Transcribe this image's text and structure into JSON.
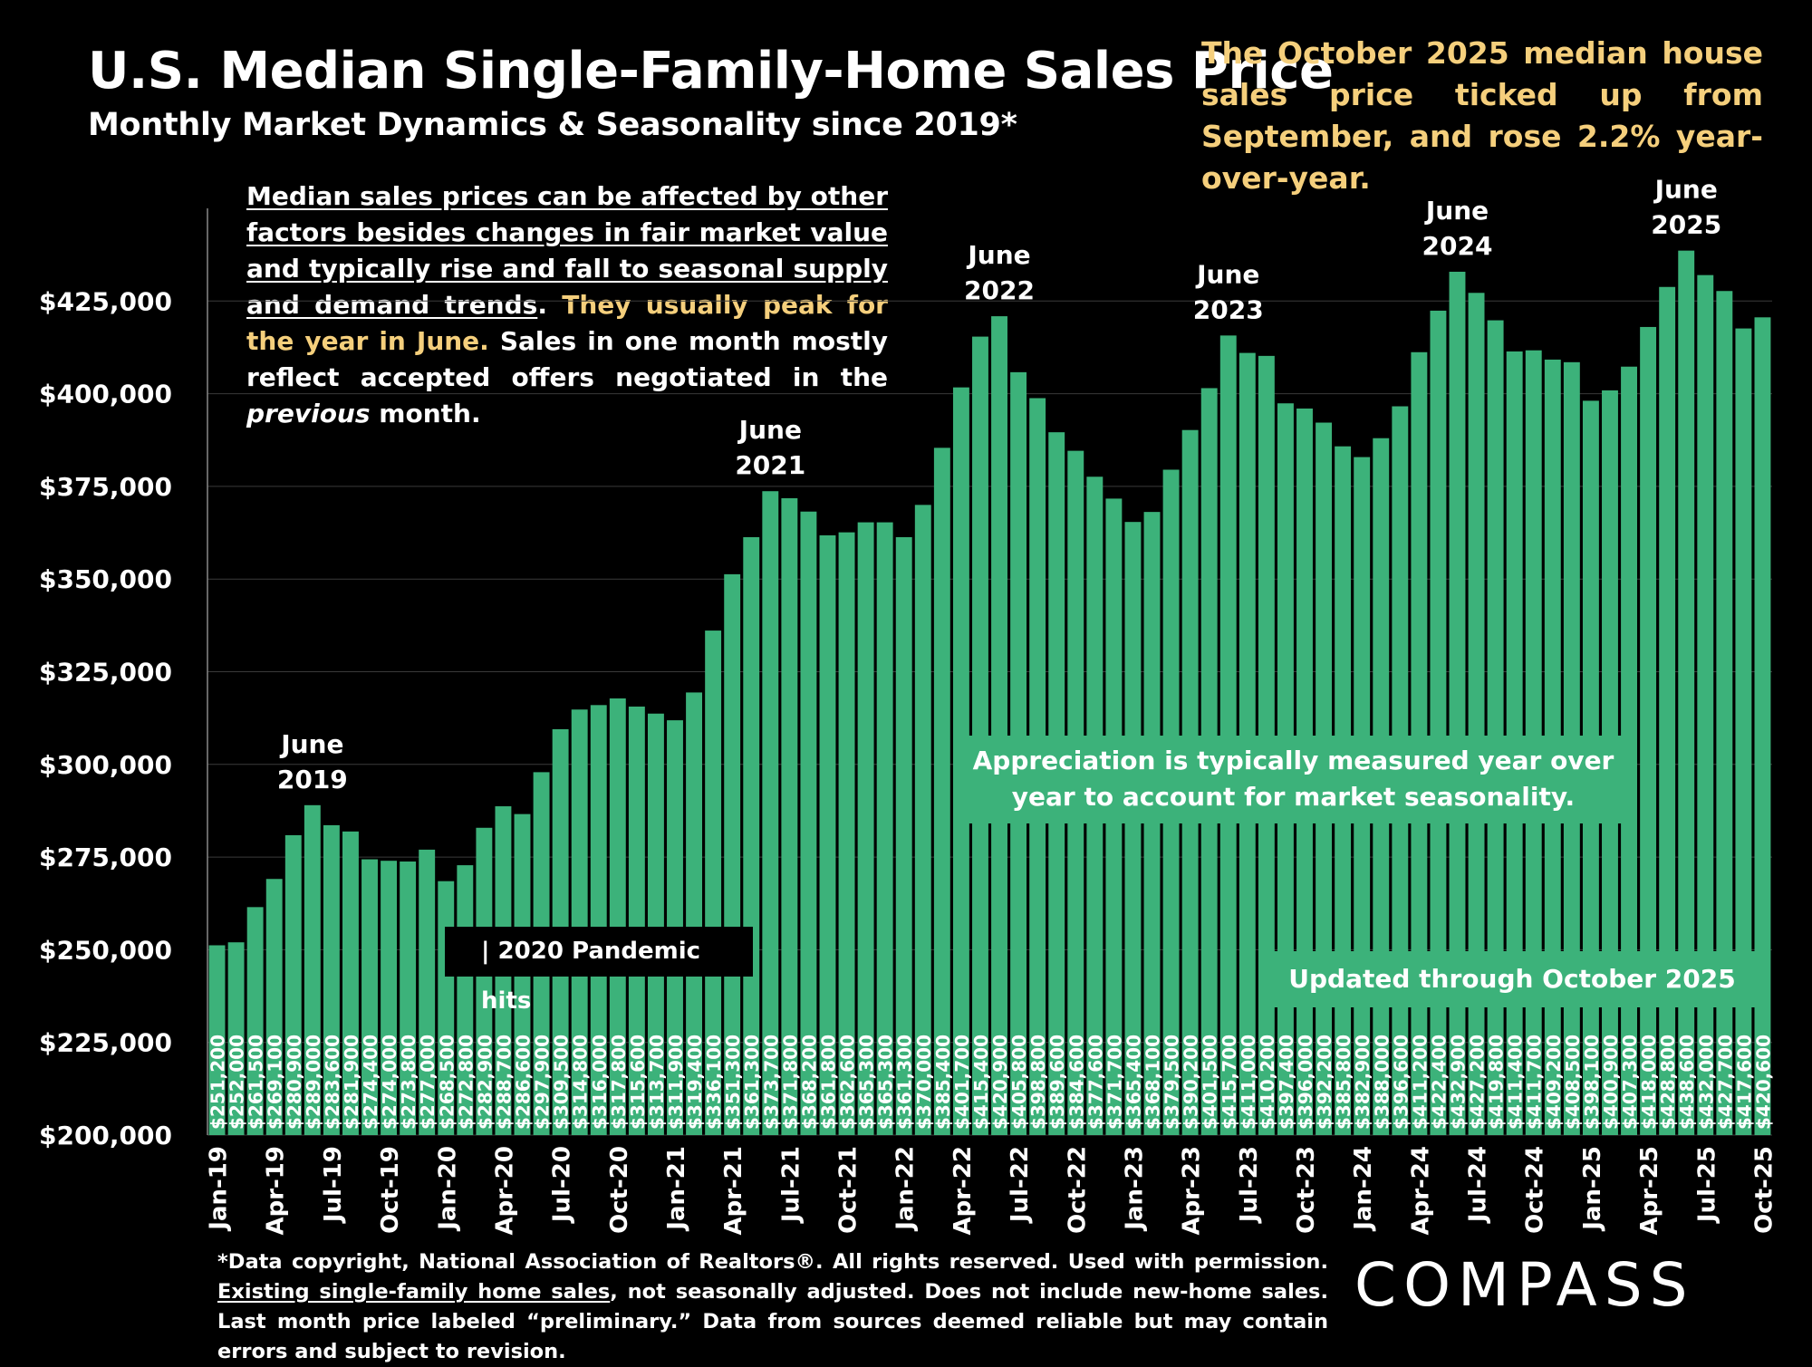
{
  "header": {
    "title": "U.S. Median Single-Family-Home Sales Price",
    "subtitle": "Monthly Market Dynamics & Seasonality since 2019*"
  },
  "callout": "The October  2025 median house sales price ticked up from September, and rose 2.2% year-over-year.",
  "note": {
    "underlined": "Median sales prices can be affected by other factors besides changes in fair market value and typically rise and fall to seasonal supply and demand trends",
    "period": ".",
    "highlight": " They usually peak for the year in June.",
    "rest_a": " Sales in one month mostly reflect accepted offers negotiated in the ",
    "italic": "previous",
    "rest_b": " month."
  },
  "annotations": {
    "pandemic": "| 2020 Pandemic hits",
    "appreciation": "Appreciation is typically measured year over year to account for market seasonality.",
    "updated": "Updated through October 2025"
  },
  "footnote": {
    "a": "*Data copyright, National Association of Realtors®. All rights reserved. Used with permission. ",
    "link": "Existing single-family home sales",
    "b": ", not seasonally adjusted. Does not include new-home sales. Last month price labeled “preliminary.” Data from sources deemed reliable but may contain errors and subject to revision."
  },
  "logo": "COMPASS",
  "colors": {
    "bar": "#3cb27a",
    "highlight_text": "#f5cf7c",
    "background": "#000000"
  },
  "chart_data": {
    "type": "bar",
    "title": "U.S. Median Single-Family-Home Sales Price",
    "ylim": [
      200000,
      450000
    ],
    "y_ticks": [
      "$200,000",
      "$225,000",
      "$250,000",
      "$275,000",
      "$300,000",
      "$325,000",
      "$350,000",
      "$375,000",
      "$400,000",
      "$425,000"
    ],
    "x_tick_labels": [
      "Jan-19",
      "Apr-19",
      "Jul-19",
      "Oct-19",
      "Jan-20",
      "Apr-20",
      "Jul-20",
      "Oct-20",
      "Jan-21",
      "Apr-21",
      "Jul-21",
      "Oct-21",
      "Jan-22",
      "Apr-22",
      "Jul-22",
      "Oct-22",
      "Jan-23",
      "Apr-23",
      "Jul-23",
      "Oct-23",
      "Jan-24",
      "Apr-24",
      "Jul-24",
      "Oct-24",
      "Jan-25",
      "Apr-25",
      "Jul-25",
      "Oct-25"
    ],
    "categories": [
      "Jan-19",
      "Feb-19",
      "Mar-19",
      "Apr-19",
      "May-19",
      "Jun-19",
      "Jul-19",
      "Aug-19",
      "Sep-19",
      "Oct-19",
      "Nov-19",
      "Dec-19",
      "Jan-20",
      "Feb-20",
      "Mar-20",
      "Apr-20",
      "May-20",
      "Jun-20",
      "Jul-20",
      "Aug-20",
      "Sep-20",
      "Oct-20",
      "Nov-20",
      "Dec-20",
      "Jan-21",
      "Feb-21",
      "Mar-21",
      "Apr-21",
      "May-21",
      "Jun-21",
      "Jul-21",
      "Aug-21",
      "Sep-21",
      "Oct-21",
      "Nov-21",
      "Dec-21",
      "Jan-22",
      "Feb-22",
      "Mar-22",
      "Apr-22",
      "May-22",
      "Jun-22",
      "Jul-22",
      "Aug-22",
      "Sep-22",
      "Oct-22",
      "Nov-22",
      "Dec-22",
      "Jan-23",
      "Feb-23",
      "Mar-23",
      "Apr-23",
      "May-23",
      "Jun-23",
      "Jul-23",
      "Aug-23",
      "Sep-23",
      "Oct-23",
      "Nov-23",
      "Dec-23",
      "Jan-24",
      "Feb-24",
      "Mar-24",
      "Apr-24",
      "May-24",
      "Jun-24",
      "Jul-24",
      "Aug-24",
      "Sep-24",
      "Oct-24",
      "Nov-24",
      "Dec-24",
      "Jan-25",
      "Feb-25",
      "Mar-25",
      "Apr-25",
      "May-25",
      "Jun-25",
      "Jul-25",
      "Aug-25",
      "Sep-25",
      "Oct-25"
    ],
    "values": [
      251200,
      252000,
      261500,
      269100,
      280900,
      289000,
      283600,
      281900,
      274400,
      274000,
      273800,
      277000,
      268500,
      272800,
      282900,
      288700,
      286600,
      297900,
      309500,
      314800,
      316000,
      317800,
      315600,
      313700,
      311900,
      319400,
      336100,
      351300,
      361300,
      373700,
      371800,
      368200,
      361800,
      362600,
      365300,
      365300,
      361300,
      370000,
      385400,
      401700,
      415400,
      420900,
      405800,
      398800,
      389600,
      384600,
      377600,
      371700,
      365400,
      368100,
      379500,
      390200,
      401500,
      415700,
      411000,
      410200,
      397400,
      396000,
      392200,
      385800,
      382900,
      388000,
      396600,
      411200,
      422400,
      432900,
      427200,
      419800,
      411400,
      411700,
      409200,
      408500,
      398100,
      400900,
      407300,
      418000,
      428800,
      438600,
      432000,
      427700,
      417600,
      420600
    ],
    "value_labels": [
      "$251,200",
      "$252,000",
      "$261,500",
      "$269,100",
      "$280,900",
      "$289,000",
      "$283,600",
      "$281,900",
      "$274,400",
      "$274,000",
      "$273,800",
      "$277,000",
      "$268,500",
      "$272,800",
      "$282,900",
      "$288,700",
      "$286,600",
      "$297,900",
      "$309,500",
      "$314,800",
      "$316,000",
      "$317,800",
      "$315,600",
      "$313,700",
      "$311,900",
      "$319,400",
      "$336,100",
      "$351,300",
      "$361,300",
      "$373,700",
      "$371,800",
      "$368,200",
      "$361,800",
      "$362,600",
      "$365,300",
      "$365,300",
      "$361,300",
      "$370,000",
      "$385,400",
      "$401,700",
      "$415,400",
      "$420,900",
      "$405,800",
      "$398,800",
      "$389,600",
      "$384,600",
      "$377,600",
      "$371,700",
      "$365,400",
      "$368,100",
      "$379,500",
      "$390,200",
      "$401,500",
      "$415,700",
      "$411,000",
      "$410,200",
      "$397,400",
      "$396,000",
      "$392,200",
      "$385,800",
      "$382,900",
      "$388,000",
      "$396,600",
      "$411,200",
      "$422,400",
      "$432,900",
      "$427,200",
      "$419,800",
      "$411,400",
      "$411,700",
      "$409,200",
      "$408,500",
      "$398,100",
      "$400,900",
      "$407,300",
      "$418,000",
      "$428,800",
      "$438,600",
      "$432,000",
      "$427,700",
      "$417,600",
      "$420,600"
    ],
    "peak_labels": [
      {
        "index": 5,
        "line1": "June",
        "line2": "2019"
      },
      {
        "index": 29,
        "line1": "June",
        "line2": "2021"
      },
      {
        "index": 41,
        "line1": "June",
        "line2": "2022"
      },
      {
        "index": 53,
        "line1": "June",
        "line2": "2023"
      },
      {
        "index": 65,
        "line1": "June",
        "line2": "2024"
      },
      {
        "index": 77,
        "line1": "June",
        "line2": "2025"
      }
    ]
  }
}
